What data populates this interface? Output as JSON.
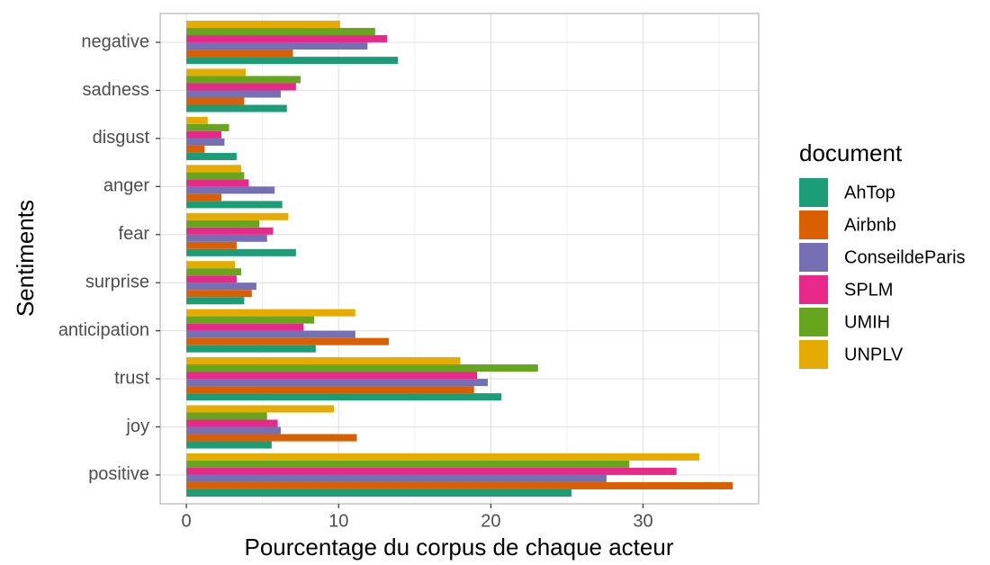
{
  "chart_data": {
    "type": "hbar",
    "x_label": "Pourcentage du corpus de chaque acteur",
    "y_label": "Sentiments",
    "legend_title": "document",
    "legend": "right",
    "grid": true,
    "categories": [
      "negative",
      "sadness",
      "disgust",
      "anger",
      "fear",
      "surprise",
      "anticipation",
      "trust",
      "joy",
      "positive"
    ],
    "series": [
      {
        "name": "AhTop",
        "color": "#1b9e77",
        "values": [
          13.9,
          6.6,
          3.3,
          6.3,
          7.2,
          3.8,
          8.5,
          20.7,
          5.6,
          25.3
        ]
      },
      {
        "name": "Airbnb",
        "color": "#d95f02",
        "values": [
          7.0,
          3.8,
          1.2,
          2.3,
          3.3,
          4.3,
          13.3,
          18.9,
          11.2,
          35.9
        ]
      },
      {
        "name": "ConseildeParis",
        "color": "#7570b3",
        "values": [
          11.9,
          6.2,
          2.5,
          5.8,
          5.3,
          4.6,
          11.1,
          19.8,
          6.2,
          27.6
        ]
      },
      {
        "name": "SPLM",
        "color": "#e7298a",
        "values": [
          13.2,
          7.2,
          2.3,
          4.1,
          5.7,
          3.3,
          7.7,
          19.1,
          6.0,
          32.2
        ]
      },
      {
        "name": "UMIH",
        "color": "#66a61e",
        "values": [
          12.4,
          7.5,
          2.8,
          3.8,
          4.8,
          3.6,
          8.4,
          23.1,
          5.3,
          29.1
        ]
      },
      {
        "name": "UNPLV",
        "color": "#e6ab02",
        "values": [
          10.1,
          3.9,
          1.4,
          3.6,
          6.7,
          3.2,
          11.1,
          18.0,
          9.7,
          33.7
        ]
      }
    ],
    "xlim": [
      -1.72,
      37.6
    ],
    "xticks": [
      0,
      10,
      20,
      30
    ],
    "xminor": [
      5,
      15,
      25,
      35
    ]
  }
}
